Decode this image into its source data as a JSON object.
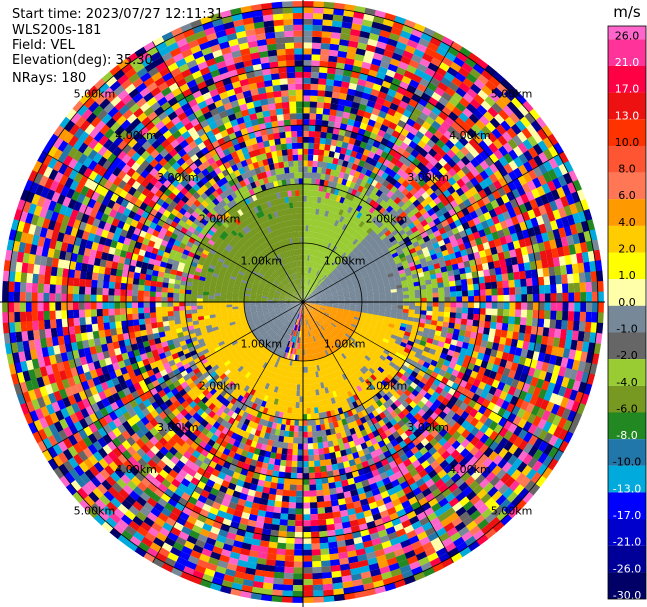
{
  "header": {
    "start_time": "Start time: 2023/07/27 12:11:31",
    "site": "WLS200s-181",
    "field": "Field: VEL",
    "elevation": "Elevation(deg): 35.30",
    "nrays": "NRays: 180"
  },
  "chart_data": {
    "type": "heatmap",
    "projection": "polar-ppi",
    "field": "VEL",
    "unit": "m/s",
    "rays": 180,
    "range_rings_km": [
      1,
      2,
      3,
      4,
      5
    ],
    "ring_labels": [
      "1.00km",
      "2.00km",
      "3.00km",
      "4.00km",
      "5.00km"
    ],
    "max_range_km": 5.1,
    "colorbar": {
      "unit": "m/s",
      "ticks": [
        "26.0",
        "21.0",
        "17.0",
        "13.0",
        "10.0",
        "8.0",
        "6.0",
        "4.0",
        "2.0",
        "1.0",
        "0.0",
        "-1.0",
        "-2.0",
        "-4.0",
        "-6.0",
        "-8.0",
        "-10.0",
        "-13.0",
        "-17.0",
        "-21.0",
        "-26.0",
        "-30.0"
      ],
      "tick_values": [
        26,
        21,
        17,
        13,
        10,
        8,
        6,
        4,
        2,
        1,
        0,
        -1,
        -2,
        -4,
        -6,
        -8,
        -10,
        -13,
        -17,
        -21,
        -26,
        -30
      ],
      "colors": [
        "#ff66cc",
        "#ff3399",
        "#ff0044",
        "#ee1111",
        "#ff3300",
        "#ff5533",
        "#ff7755",
        "#ff9900",
        "#ffcc00",
        "#ffff00",
        "#ffffaa",
        "#778899",
        "#666666",
        "#99cc33",
        "#779922",
        "#228822",
        "#2277aa",
        "#00aadd",
        "#0000ff",
        "#0000cc",
        "#000099",
        "#000066",
        "#000033"
      ]
    },
    "velocity_regions": [
      {
        "az_from": 270,
        "az_to": 360,
        "range_km": [
          0,
          2.0
        ],
        "value": -6.0
      },
      {
        "az_from": 0,
        "az_to": 45,
        "range_km": [
          0,
          2.0
        ],
        "value": -4.0
      },
      {
        "az_from": 45,
        "az_to": 100,
        "range_km": [
          0,
          1.7
        ],
        "value": -0.5
      },
      {
        "az_from": 100,
        "az_to": 185,
        "range_km": [
          0,
          1.0
        ],
        "value": 5.0
      },
      {
        "az_from": 100,
        "az_to": 200,
        "range_km": [
          1.0,
          2.0
        ],
        "value": 3.0
      },
      {
        "az_from": 200,
        "az_to": 270,
        "range_km": [
          0,
          1.0
        ],
        "value": -0.5
      },
      {
        "az_from": 200,
        "az_to": 270,
        "range_km": [
          1.0,
          1.8
        ],
        "value": 2.0
      }
    ],
    "noise_start_km": 2.1
  }
}
